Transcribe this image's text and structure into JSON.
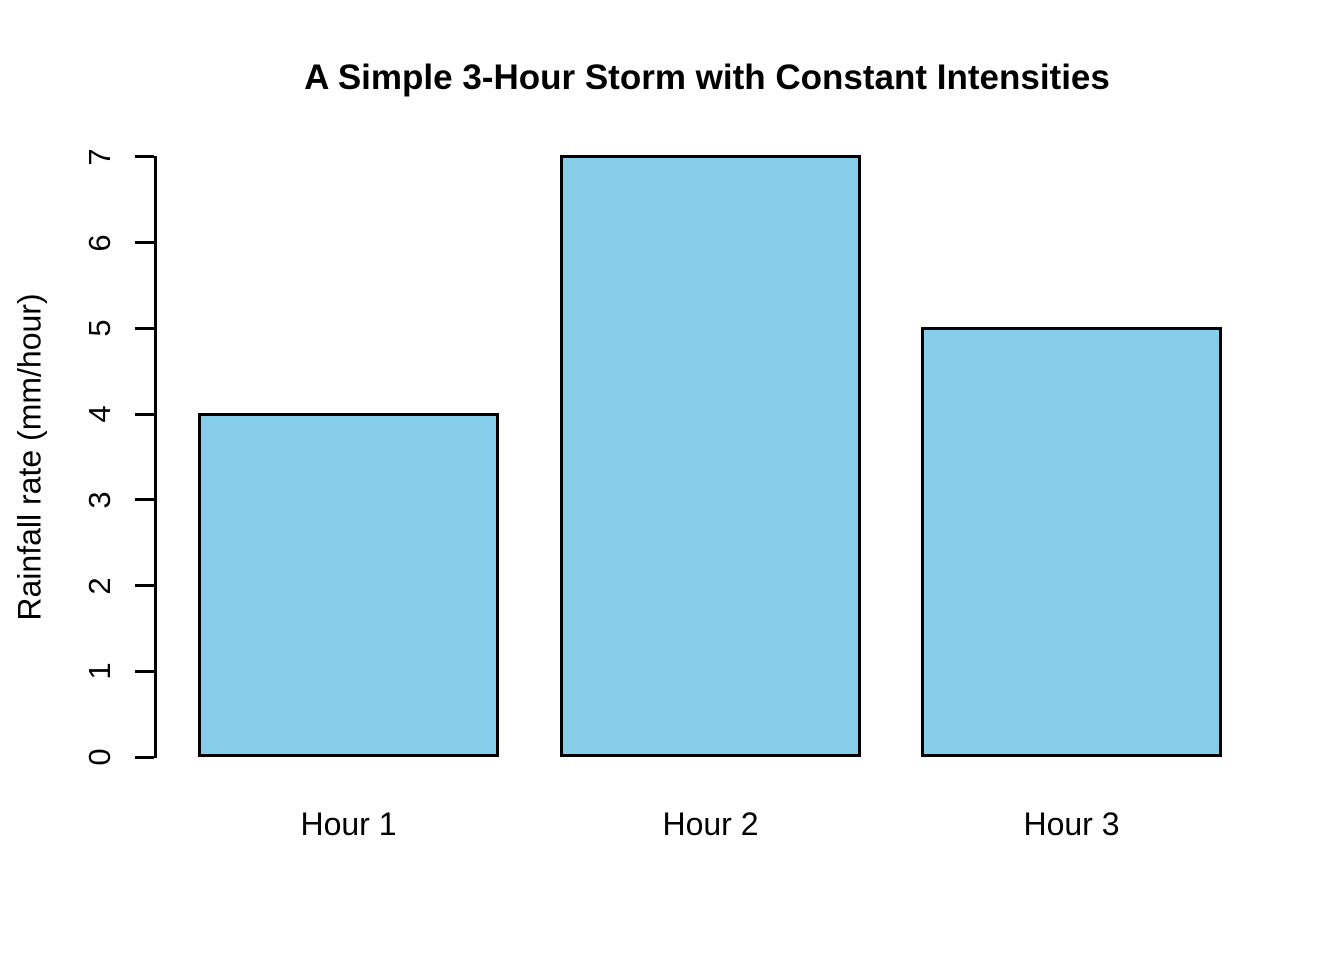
{
  "chart_data": {
    "type": "bar",
    "title": "A Simple 3-Hour Storm with Constant Intensities",
    "xlabel": "",
    "ylabel": "Rainfall rate (mm/hour)",
    "categories": [
      "Hour 1",
      "Hour 2",
      "Hour 3"
    ],
    "values": [
      4,
      7,
      5
    ],
    "ylim": [
      0,
      7
    ],
    "yticks": [
      0,
      1,
      2,
      3,
      4,
      5,
      6,
      7
    ],
    "grid": "off",
    "legend": "none",
    "colors": {
      "bar_fill": "#87CEEB",
      "bar_border": "#000000",
      "axis": "#000000",
      "text": "#000000",
      "background": "#FFFFFF"
    }
  }
}
